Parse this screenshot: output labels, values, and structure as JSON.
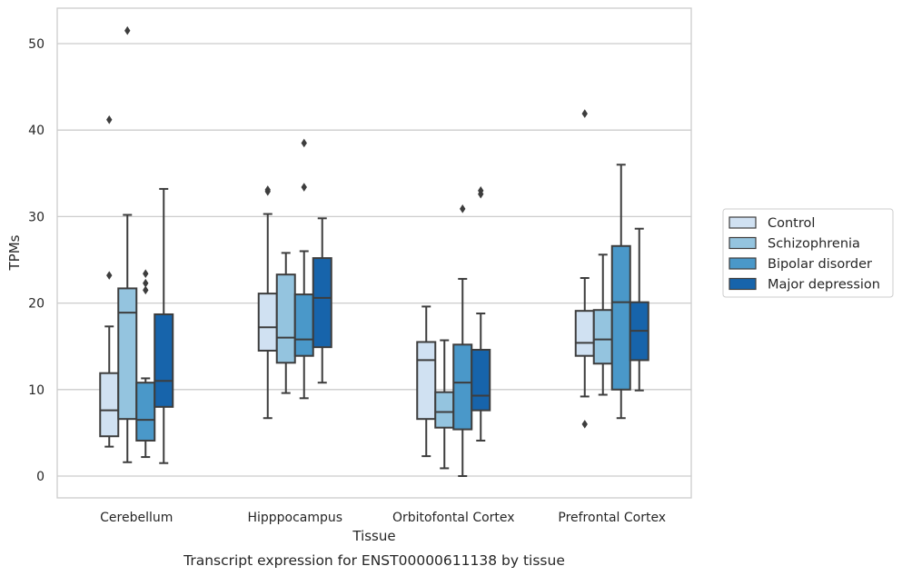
{
  "chart_data": {
    "type": "box",
    "xlabel": "Tissue",
    "ylabel": "TPMs",
    "caption": "Transcript expression for ENST00000611138 by tissue",
    "ylim": [
      -2.5,
      54
    ],
    "yticks": [
      0,
      10,
      20,
      30,
      40,
      50
    ],
    "grid": true,
    "legend_placement": "right",
    "categories": [
      "Cerebellum",
      "Hipppocampus",
      "Orbitofontal Cortex",
      "Prefrontal Cortex"
    ],
    "colors": [
      "#d0e1f2",
      "#94c4df",
      "#4a98c9",
      "#1764ab"
    ],
    "series": [
      {
        "name": "Control",
        "boxes": [
          {
            "whisker_low": 3.4,
            "q1": 4.6,
            "median": 7.6,
            "q3": 11.9,
            "whisker_high": 17.3,
            "outliers": [
              23.2,
              41.2
            ]
          },
          {
            "whisker_low": 6.7,
            "q1": 14.5,
            "median": 17.2,
            "q3": 21.1,
            "whisker_high": 30.3,
            "outliers": [
              32.9,
              33.1
            ]
          },
          {
            "whisker_low": 2.3,
            "q1": 6.6,
            "median": 13.4,
            "q3": 15.5,
            "whisker_high": 19.6,
            "outliers": []
          },
          {
            "whisker_low": 9.2,
            "q1": 13.9,
            "median": 15.4,
            "q3": 19.1,
            "whisker_high": 22.9,
            "outliers": [
              6.0,
              41.9
            ]
          }
        ]
      },
      {
        "name": "Schizophrenia",
        "boxes": [
          {
            "whisker_low": 1.6,
            "q1": 6.6,
            "median": 18.9,
            "q3": 21.7,
            "whisker_high": 30.2,
            "outliers": [
              51.5
            ]
          },
          {
            "whisker_low": 9.6,
            "q1": 13.1,
            "median": 16.0,
            "q3": 23.3,
            "whisker_high": 25.8,
            "outliers": []
          },
          {
            "whisker_low": 0.9,
            "q1": 5.6,
            "median": 7.4,
            "q3": 9.7,
            "whisker_high": 15.7,
            "outliers": []
          },
          {
            "whisker_low": 9.4,
            "q1": 13.0,
            "median": 15.8,
            "q3": 19.2,
            "whisker_high": 25.6,
            "outliers": []
          }
        ]
      },
      {
        "name": "Bipolar disorder",
        "boxes": [
          {
            "whisker_low": 2.2,
            "q1": 4.1,
            "median": 6.5,
            "q3": 10.8,
            "whisker_high": 11.3,
            "outliers": [
              21.5,
              22.3,
              23.4
            ]
          },
          {
            "whisker_low": 9.0,
            "q1": 13.9,
            "median": 15.8,
            "q3": 21.0,
            "whisker_high": 26.0,
            "outliers": [
              33.4,
              38.5
            ]
          },
          {
            "whisker_low": 0.0,
            "q1": 5.4,
            "median": 10.8,
            "q3": 15.2,
            "whisker_high": 22.8,
            "outliers": [
              30.9
            ]
          },
          {
            "whisker_low": 6.7,
            "q1": 10.0,
            "median": 20.1,
            "q3": 26.6,
            "whisker_high": 36.0,
            "outliers": []
          }
        ]
      },
      {
        "name": "Major depression",
        "boxes": [
          {
            "whisker_low": 1.5,
            "q1": 8.0,
            "median": 11.0,
            "q3": 18.7,
            "whisker_high": 33.2,
            "outliers": []
          },
          {
            "whisker_low": 10.8,
            "q1": 14.9,
            "median": 20.6,
            "q3": 25.2,
            "whisker_high": 29.8,
            "outliers": []
          },
          {
            "whisker_low": 4.1,
            "q1": 7.6,
            "median": 9.3,
            "q3": 14.6,
            "whisker_high": 18.8,
            "outliers": [
              32.6,
              33.0
            ]
          },
          {
            "whisker_low": 9.9,
            "q1": 13.4,
            "median": 16.8,
            "q3": 20.1,
            "whisker_high": 28.6,
            "outliers": []
          }
        ]
      }
    ]
  }
}
